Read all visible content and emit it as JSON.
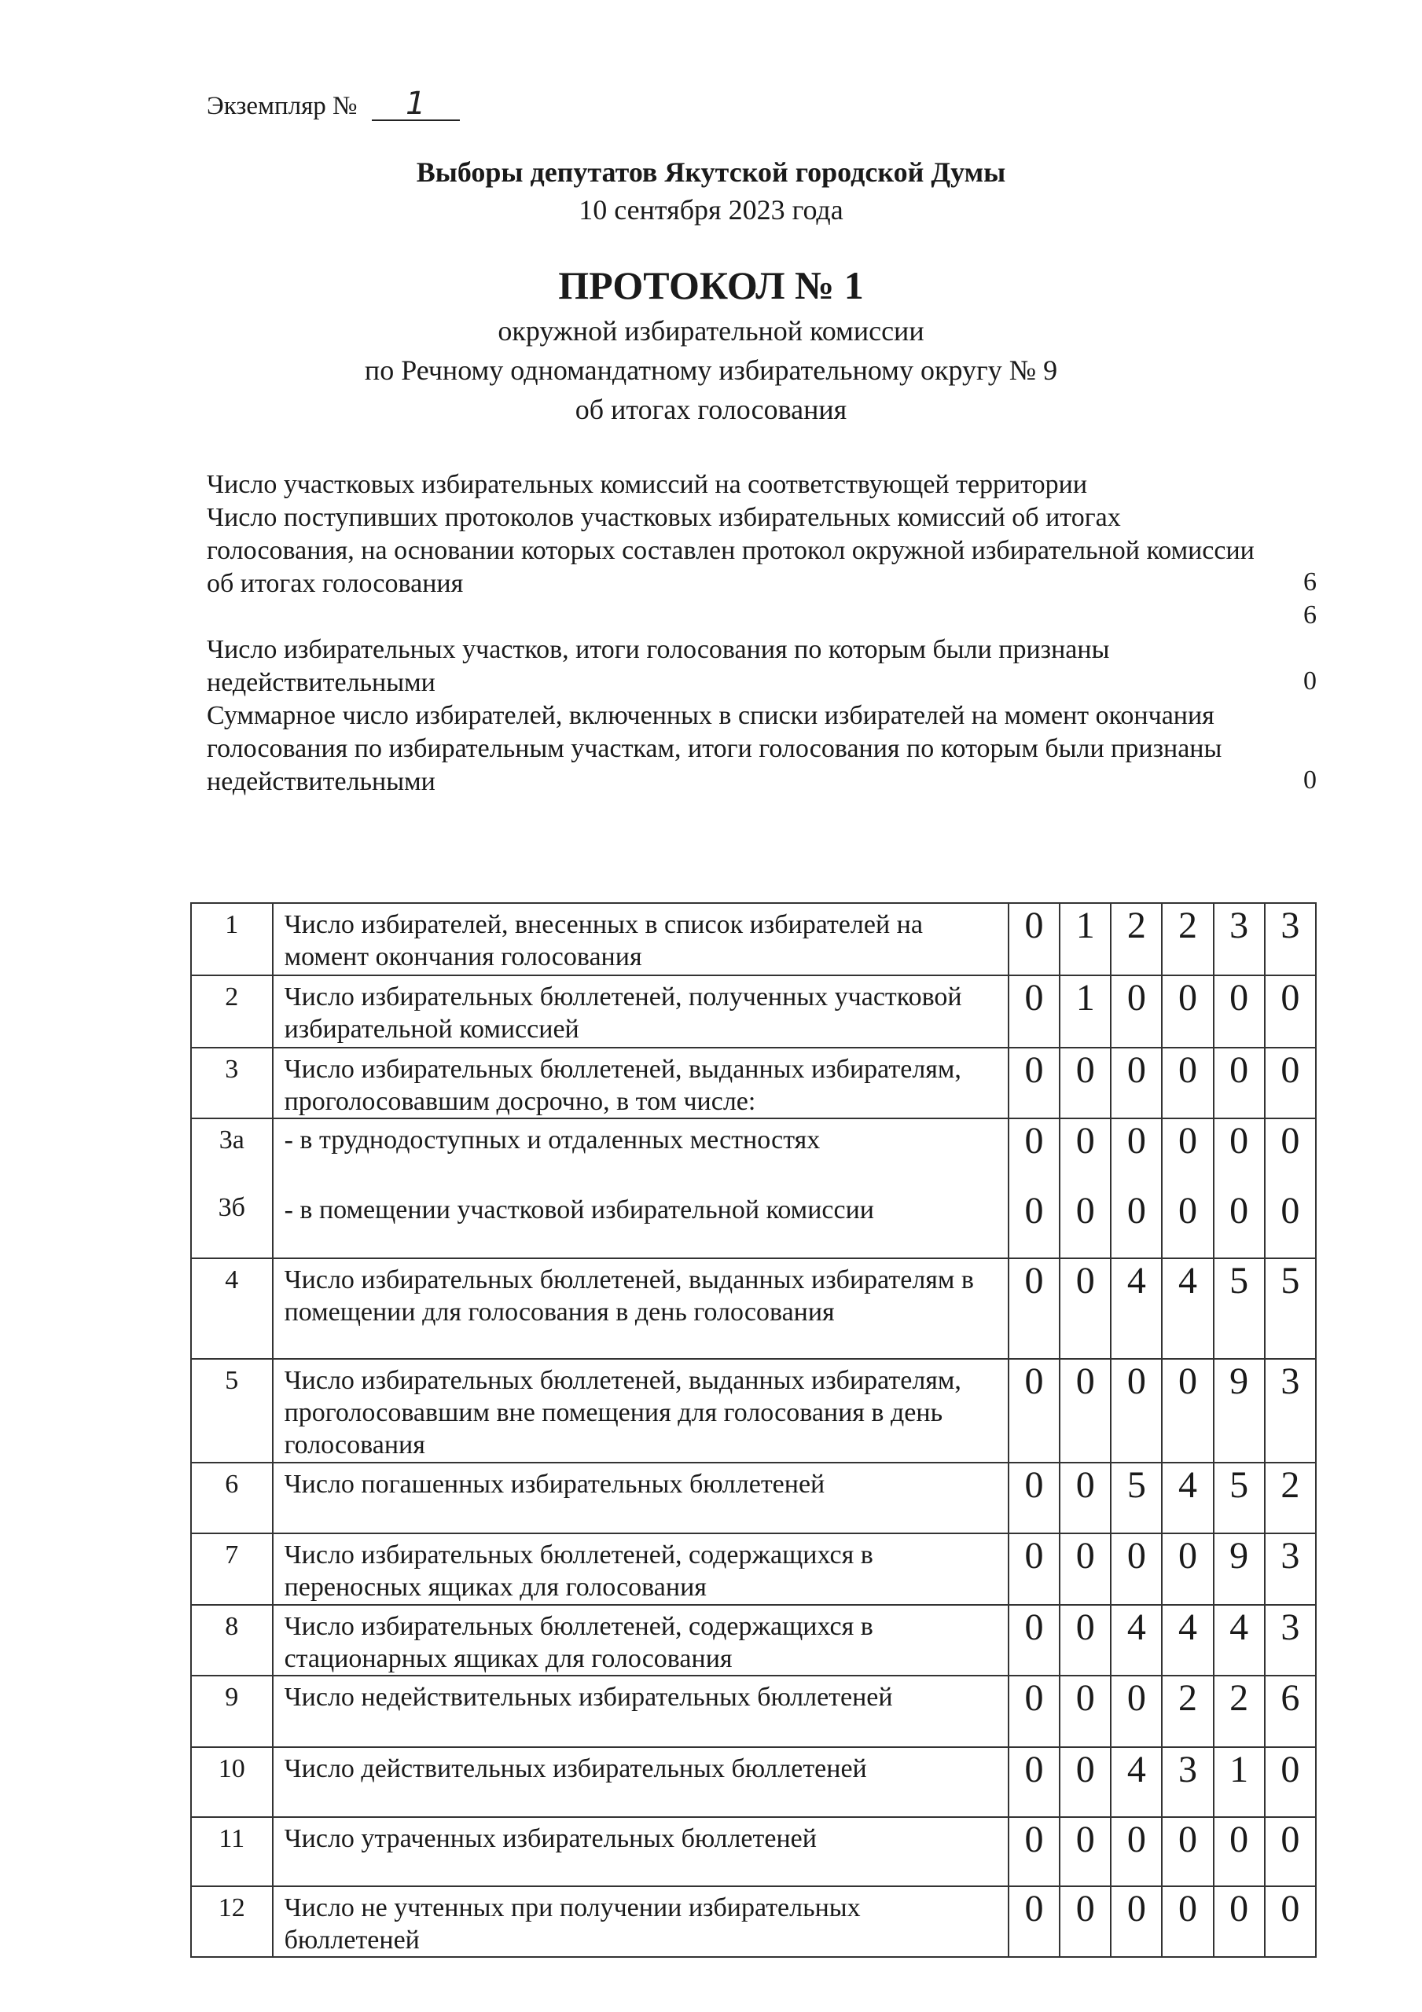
{
  "copy": {
    "label": "Экземпляр №",
    "number": "1"
  },
  "header": {
    "title": "Выборы депутатов Якутской городской Думы",
    "date": "10 сентября 2023 года",
    "protocol": "ПРОТОКОЛ № 1",
    "sub1": "окружной избирательной комиссии",
    "sub2": "по Речному одномандатному избирательному округу № 9",
    "sub3": "об итогах голосования"
  },
  "summary": [
    {
      "text": "Число участковых избирательных комиссий на соответствующей территории",
      "value": "6"
    },
    {
      "text": "Число поступивших протоколов участковых избирательных комиссий об итогах голосования, на основании которых составлен протокол окружной избирательной комиссии об итогах голосования",
      "value": "6"
    },
    {
      "text": "Число избирательных участков, итоги голосования по которым были признаны недействительными",
      "value": "0"
    },
    {
      "text": "Суммарное число избирателей, включенных в списки избирателей на момент окончания голосования по избирательным участкам, итоги голосования по которым были признаны недействительными",
      "value": "0"
    }
  ],
  "rows": [
    {
      "no": "1",
      "text": "Число избирателей, внесенных в список избирателей на момент окончания голосования",
      "digits": [
        "0",
        "1",
        "2",
        "2",
        "3",
        "3"
      ]
    },
    {
      "no": "2",
      "text": "Число избирательных бюллетеней, полученных участковой избирательной комиссией",
      "digits": [
        "0",
        "1",
        "0",
        "0",
        "0",
        "0"
      ]
    },
    {
      "no": "3",
      "text": "Число избирательных бюллетеней, выданных избирателям, проголосовавшим досрочно, в том числе:",
      "digits": [
        "0",
        "0",
        "0",
        "0",
        "0",
        "0"
      ]
    },
    {
      "no": "3а",
      "text": "- в труднодоступных и отдаленных местностях",
      "digits": [
        "0",
        "0",
        "0",
        "0",
        "0",
        "0"
      ]
    },
    {
      "no": "3б",
      "text": "- в помещении участковой избирательной комиссии",
      "digits": [
        "0",
        "0",
        "0",
        "0",
        "0",
        "0"
      ]
    },
    {
      "no": "4",
      "text": "Число избирательных бюллетеней, выданных избирателям в помещении для голосования в день голосования",
      "digits": [
        "0",
        "0",
        "4",
        "4",
        "5",
        "5"
      ]
    },
    {
      "no": "5",
      "text": "Число избирательных бюллетеней, выданных избирателям, проголосовавшим вне помещения для голосования в день голосования",
      "digits": [
        "0",
        "0",
        "0",
        "0",
        "9",
        "3"
      ]
    },
    {
      "no": "6",
      "text": "Число погашенных избирательных бюллетеней",
      "digits": [
        "0",
        "0",
        "5",
        "4",
        "5",
        "2"
      ]
    },
    {
      "no": "7",
      "text": "Число избирательных бюллетеней, содержащихся в переносных ящиках для голосования",
      "digits": [
        "0",
        "0",
        "0",
        "0",
        "9",
        "3"
      ]
    },
    {
      "no": "8",
      "text": "Число избирательных бюллетеней, содержащихся в стационарных ящиках для голосования",
      "digits": [
        "0",
        "0",
        "4",
        "4",
        "4",
        "3"
      ]
    },
    {
      "no": "9",
      "text": "Число недействительных избирательных бюллетеней",
      "digits": [
        "0",
        "0",
        "0",
        "2",
        "2",
        "6"
      ]
    },
    {
      "no": "10",
      "text": "Число действительных избирательных бюллетеней",
      "digits": [
        "0",
        "0",
        "4",
        "3",
        "1",
        "0"
      ]
    },
    {
      "no": "11",
      "text": "Число утраченных избирательных  бюллетеней",
      "digits": [
        "0",
        "0",
        "0",
        "0",
        "0",
        "0"
      ]
    },
    {
      "no": "12",
      "text": "Число не учтенных при получении избирательных бюллетеней",
      "digits": [
        "0",
        "0",
        "0",
        "0",
        "0",
        "0"
      ]
    }
  ]
}
